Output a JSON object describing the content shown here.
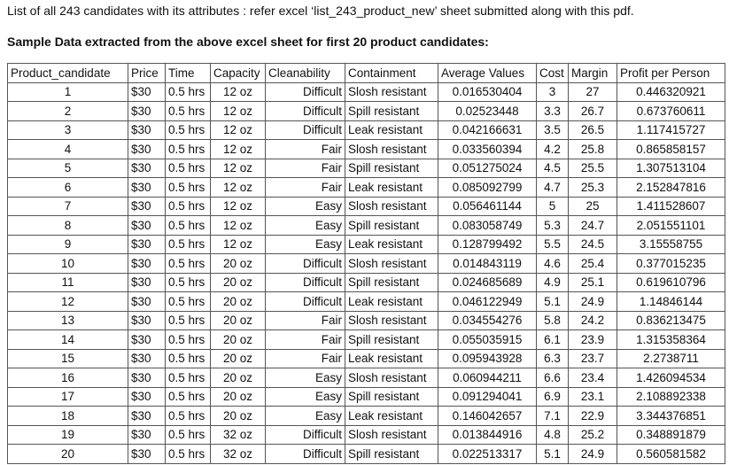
{
  "intro": "List of all 243 candidates with its attributes  : refer excel ‘list_243_product_new’ sheet  submitted along with this pdf.",
  "heading": "Sample Data extracted from the above excel sheet for first 20 product candidates:",
  "table": {
    "headers": [
      "Product_candidate",
      "Price",
      "Time",
      "Capacity",
      "Cleanability",
      "Containment",
      "Average Values",
      "Cost",
      "Margin",
      "Profit per Person"
    ],
    "rows": [
      [
        "1",
        "$30",
        "0.5 hrs",
        "12 oz",
        "Difficult",
        "Slosh resistant",
        "0.016530404",
        "3",
        "27",
        "0.446320921"
      ],
      [
        "2",
        "$30",
        "0.5 hrs",
        "12 oz",
        "Difficult",
        "Spill resistant",
        "0.02523448",
        "3.3",
        "26.7",
        "0.673760611"
      ],
      [
        "3",
        "$30",
        "0.5 hrs",
        "12 oz",
        "Difficult",
        "Leak resistant",
        "0.042166631",
        "3.5",
        "26.5",
        "1.117415727"
      ],
      [
        "4",
        "$30",
        "0.5 hrs",
        "12 oz",
        "Fair",
        "Slosh resistant",
        "0.033560394",
        "4.2",
        "25.8",
        "0.865858157"
      ],
      [
        "5",
        "$30",
        "0.5 hrs",
        "12 oz",
        "Fair",
        "Spill resistant",
        "0.051275024",
        "4.5",
        "25.5",
        "1.307513104"
      ],
      [
        "6",
        "$30",
        "0.5 hrs",
        "12 oz",
        "Fair",
        "Leak resistant",
        "0.085092799",
        "4.7",
        "25.3",
        "2.152847816"
      ],
      [
        "7",
        "$30",
        "0.5 hrs",
        "12 oz",
        "Easy",
        "Slosh resistant",
        "0.056461144",
        "5",
        "25",
        "1.411528607"
      ],
      [
        "8",
        "$30",
        "0.5 hrs",
        "12 oz",
        "Easy",
        "Spill resistant",
        "0.083058749",
        "5.3",
        "24.7",
        "2.051551101"
      ],
      [
        "9",
        "$30",
        "0.5 hrs",
        "12 oz",
        "Easy",
        "Leak resistant",
        "0.128799492",
        "5.5",
        "24.5",
        "3.15558755"
      ],
      [
        "10",
        "$30",
        "0.5 hrs",
        "20 oz",
        "Difficult",
        "Slosh resistant",
        "0.014843119",
        "4.6",
        "25.4",
        "0.377015235"
      ],
      [
        "11",
        "$30",
        "0.5 hrs",
        "20 oz",
        "Difficult",
        "Spill resistant",
        "0.024685689",
        "4.9",
        "25.1",
        "0.619610796"
      ],
      [
        "12",
        "$30",
        "0.5 hrs",
        "20 oz",
        "Difficult",
        "Leak resistant",
        "0.046122949",
        "5.1",
        "24.9",
        "1.14846144"
      ],
      [
        "13",
        "$30",
        "0.5 hrs",
        "20 oz",
        "Fair",
        "Slosh resistant",
        "0.034554276",
        "5.8",
        "24.2",
        "0.836213475"
      ],
      [
        "14",
        "$30",
        "0.5 hrs",
        "20 oz",
        "Fair",
        "Spill resistant",
        "0.055035915",
        "6.1",
        "23.9",
        "1.315358364"
      ],
      [
        "15",
        "$30",
        "0.5 hrs",
        "20 oz",
        "Fair",
        "Leak resistant",
        "0.095943928",
        "6.3",
        "23.7",
        "2.2738711"
      ],
      [
        "16",
        "$30",
        "0.5 hrs",
        "20 oz",
        "Easy",
        "Slosh resistant",
        "0.060944211",
        "6.6",
        "23.4",
        "1.426094534"
      ],
      [
        "17",
        "$30",
        "0.5 hrs",
        "20 oz",
        "Easy",
        "Spill resistant",
        "0.091294041",
        "6.9",
        "23.1",
        "2.108892338"
      ],
      [
        "18",
        "$30",
        "0.5 hrs",
        "20 oz",
        "Easy",
        "Leak resistant",
        "0.146042657",
        "7.1",
        "22.9",
        "3.344376851"
      ],
      [
        "19",
        "$30",
        "0.5 hrs",
        "32 oz",
        "Difficult",
        "Slosh resistant",
        "0.013844916",
        "4.8",
        "25.2",
        "0.348891879"
      ],
      [
        "20",
        "$30",
        "0.5 hrs",
        "32 oz",
        "Difficult",
        "Spill resistant",
        "0.022513317",
        "5.1",
        "24.9",
        "0.560581582"
      ]
    ]
  }
}
